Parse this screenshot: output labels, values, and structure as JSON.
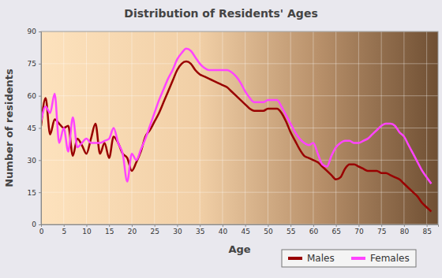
{
  "chart_data": {
    "type": "line",
    "title": "Distribution of Residents' Ages",
    "x_label": "Age",
    "y_label": "Number of residents",
    "x": [
      0,
      1,
      2,
      3,
      4,
      5,
      6,
      7,
      8,
      9,
      10,
      11,
      12,
      13,
      14,
      15,
      16,
      17,
      18,
      19,
      20,
      21,
      22,
      23,
      24,
      25,
      26,
      27,
      28,
      29,
      30,
      31,
      32,
      33,
      34,
      35,
      36,
      37,
      38,
      39,
      40,
      41,
      42,
      43,
      44,
      45,
      46,
      47,
      48,
      49,
      50,
      51,
      52,
      53,
      54,
      55,
      56,
      57,
      58,
      59,
      60,
      61,
      62,
      63,
      64,
      65,
      66,
      67,
      68,
      69,
      70,
      71,
      72,
      73,
      74,
      75,
      76,
      77,
      78,
      79,
      80,
      81,
      82,
      83,
      84,
      85,
      86
    ],
    "series": [
      {
        "name": "Males",
        "color": "#990000",
        "values": [
          46,
          59,
          42,
          49,
          47,
          45,
          46,
          32,
          40,
          37,
          33,
          40,
          47,
          33,
          38,
          31,
          41,
          38,
          33,
          31,
          25,
          29,
          34,
          41,
          44,
          48,
          52,
          57,
          62,
          67,
          72,
          75,
          76,
          75,
          72,
          70,
          69,
          68,
          67,
          66,
          65,
          64,
          62,
          60,
          58,
          56,
          54,
          53,
          53,
          53,
          54,
          54,
          54,
          52,
          48,
          43,
          39,
          35,
          32,
          31,
          30,
          29,
          27,
          25,
          23,
          21,
          22,
          26,
          28,
          28,
          27,
          26,
          25,
          25,
          25,
          24,
          24,
          23,
          22,
          21,
          19,
          17,
          15,
          13,
          10,
          8,
          6
        ]
      },
      {
        "name": "Females",
        "color": "#ff44ff",
        "values": [
          48,
          55,
          52,
          61,
          38,
          45,
          34,
          50,
          36,
          38,
          40,
          38,
          38,
          38,
          39,
          40,
          45,
          38,
          33,
          20,
          33,
          30,
          35,
          40,
          46,
          52,
          58,
          63,
          68,
          72,
          77,
          80,
          82,
          81,
          78,
          75,
          73,
          72,
          72,
          72,
          72,
          72,
          71,
          69,
          66,
          62,
          59,
          57,
          57,
          57,
          58,
          58,
          58,
          55,
          51,
          47,
          43,
          40,
          38,
          37,
          38,
          33,
          28,
          27,
          32,
          36,
          38,
          39,
          39,
          38,
          38,
          39,
          40,
          42,
          44,
          46,
          47,
          47,
          46,
          43,
          41,
          37,
          33,
          29,
          25,
          22,
          19
        ]
      }
    ],
    "xlim": [
      0,
      87.5
    ],
    "xticks": [
      0,
      5,
      10,
      15,
      20,
      25,
      30,
      35,
      40,
      45,
      50,
      55,
      60,
      65,
      70,
      75,
      80,
      85
    ],
    "ylim": [
      0,
      90
    ],
    "yticks": [
      0,
      15,
      30,
      45,
      60,
      75,
      90
    ],
    "grid": true,
    "legend": "bottom"
  }
}
